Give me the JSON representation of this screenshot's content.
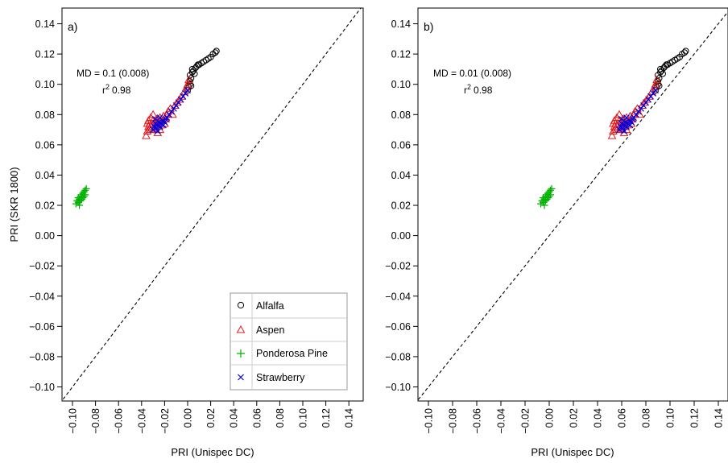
{
  "chart_data": [
    {
      "type": "scatter",
      "panel_label": "a)",
      "xlabel": "PRI (Unispec DC)",
      "ylabel": "PRI (SKR 1800)",
      "xlim": [
        -0.11,
        0.15
      ],
      "ylim": [
        -0.11,
        0.15
      ],
      "x_ticks": [
        "-0.10",
        "-0.08",
        "-0.06",
        "-0.04",
        "-0.02",
        "0.00",
        "0.02",
        "0.04",
        "0.06",
        "0.08",
        "0.10",
        "0.12",
        "0.14"
      ],
      "y_ticks": [
        "0.14",
        "0.12",
        "0.10",
        "0.08",
        "0.06",
        "0.04",
        "0.02",
        "0.00",
        "-0.02",
        "-0.04",
        "-0.06",
        "-0.08",
        "-0.10"
      ],
      "reference_line": "1:1 dashed",
      "stats": {
        "md": "MD = 0.1 (0.008)",
        "r2_label": "r",
        "r2_sup": "2",
        "r2_value": "0.98"
      },
      "legend": {
        "show": true,
        "placement": "bottom-right"
      },
      "series": [
        {
          "name": "Alfalfa",
          "marker": "circle",
          "color": "#000000",
          "x": [
            0.0,
            0.001,
            0.002,
            0.002,
            0.003,
            0.002,
            0.004,
            0.005,
            0.004,
            0.003,
            0.006,
            0.007,
            0.008,
            0.009,
            0.01,
            0.012,
            0.014,
            0.016,
            0.018,
            0.02,
            0.022,
            0.024,
            0.025
          ],
          "y": [
            0.096,
            0.098,
            0.1,
            0.102,
            0.104,
            0.106,
            0.108,
            0.109,
            0.11,
            0.099,
            0.107,
            0.111,
            0.112,
            0.113,
            0.113,
            0.114,
            0.115,
            0.116,
            0.117,
            0.118,
            0.12,
            0.121,
            0.122
          ]
        },
        {
          "name": "Aspen",
          "marker": "triangle",
          "color": "#e41a1c",
          "x": [
            -0.036,
            -0.035,
            -0.034,
            -0.033,
            -0.032,
            -0.031,
            -0.03,
            -0.029,
            -0.028,
            -0.027,
            -0.026,
            -0.025,
            -0.024,
            -0.023,
            -0.022,
            -0.021,
            -0.02,
            -0.019,
            -0.018,
            -0.017,
            -0.015,
            -0.013,
            -0.011,
            -0.009,
            -0.007,
            -0.005,
            -0.003,
            -0.001,
            0.0,
            0.001,
            -0.034,
            -0.032,
            -0.03,
            -0.028,
            -0.026,
            -0.024,
            -0.035,
            -0.033
          ],
          "y": [
            0.066,
            0.069,
            0.072,
            0.074,
            0.07,
            0.073,
            0.076,
            0.071,
            0.074,
            0.077,
            0.072,
            0.075,
            0.078,
            0.073,
            0.076,
            0.079,
            0.074,
            0.077,
            0.08,
            0.082,
            0.084,
            0.08,
            0.086,
            0.088,
            0.09,
            0.092,
            0.095,
            0.098,
            0.1,
            0.103,
            0.076,
            0.078,
            0.08,
            0.07,
            0.068,
            0.07,
            0.074,
            0.071
          ]
        },
        {
          "name": "Ponderosa Pine",
          "marker": "plus",
          "color": "#00b000",
          "x": [
            -0.097,
            -0.096,
            -0.095,
            -0.095,
            -0.094,
            -0.093,
            -0.093,
            -0.092,
            -0.091,
            -0.091,
            -0.09,
            -0.089,
            -0.089,
            -0.088,
            -0.094,
            -0.092,
            -0.09
          ],
          "y": [
            0.021,
            0.023,
            0.022,
            0.025,
            0.024,
            0.026,
            0.023,
            0.027,
            0.025,
            0.028,
            0.029,
            0.027,
            0.03,
            0.031,
            0.02,
            0.024,
            0.026
          ]
        },
        {
          "name": "Strawberry",
          "marker": "cross",
          "color": "#0000e0",
          "x": [
            -0.03,
            -0.029,
            -0.028,
            -0.027,
            -0.026,
            -0.025,
            -0.024,
            -0.023,
            -0.022,
            -0.021,
            -0.02,
            -0.019,
            -0.018,
            -0.016,
            -0.014,
            -0.012,
            -0.01,
            -0.008,
            -0.006,
            -0.004,
            -0.002,
            0.0,
            -0.028,
            -0.026,
            -0.024
          ],
          "y": [
            0.07,
            0.072,
            0.074,
            0.071,
            0.073,
            0.075,
            0.072,
            0.074,
            0.076,
            0.073,
            0.075,
            0.077,
            0.078,
            0.08,
            0.082,
            0.084,
            0.086,
            0.088,
            0.09,
            0.092,
            0.094,
            0.096,
            0.077,
            0.069,
            0.078
          ]
        }
      ]
    },
    {
      "type": "scatter",
      "panel_label": "b)",
      "xlabel": "PRI (Unispec DC)",
      "ylabel": "",
      "xlim": [
        -0.11,
        0.15
      ],
      "ylim": [
        -0.11,
        0.15
      ],
      "x_ticks": [
        "-0.10",
        "-0.08",
        "-0.06",
        "-0.04",
        "-0.02",
        "0.00",
        "0.02",
        "0.04",
        "0.06",
        "0.08",
        "0.10",
        "0.12",
        "0.14"
      ],
      "y_ticks": [
        "0.14",
        "0.12",
        "0.10",
        "0.08",
        "0.06",
        "0.04",
        "0.02",
        "0.00",
        "-0.02",
        "-0.04",
        "-0.06",
        "-0.08",
        "-0.10"
      ],
      "reference_line": "1:1 dashed",
      "stats": {
        "md": "MD = 0.01 (0.008)",
        "r2_label": "r",
        "r2_sup": "2",
        "r2_value": "0.98"
      },
      "legend": {
        "show": false
      },
      "series": [
        {
          "name": "Alfalfa",
          "marker": "circle",
          "color": "#000000",
          "x": [
            0.088,
            0.089,
            0.09,
            0.09,
            0.091,
            0.09,
            0.092,
            0.093,
            0.092,
            0.091,
            0.094,
            0.095,
            0.096,
            0.097,
            0.098,
            0.1,
            0.102,
            0.104,
            0.106,
            0.108,
            0.11,
            0.112,
            0.113
          ],
          "y": [
            0.096,
            0.098,
            0.1,
            0.102,
            0.104,
            0.106,
            0.108,
            0.109,
            0.11,
            0.099,
            0.107,
            0.111,
            0.112,
            0.113,
            0.113,
            0.114,
            0.115,
            0.116,
            0.117,
            0.118,
            0.12,
            0.121,
            0.122
          ]
        },
        {
          "name": "Aspen",
          "marker": "triangle",
          "color": "#e41a1c",
          "x": [
            0.052,
            0.053,
            0.054,
            0.055,
            0.056,
            0.057,
            0.058,
            0.059,
            0.06,
            0.061,
            0.062,
            0.063,
            0.064,
            0.065,
            0.066,
            0.067,
            0.068,
            0.069,
            0.07,
            0.071,
            0.073,
            0.075,
            0.077,
            0.079,
            0.081,
            0.083,
            0.085,
            0.087,
            0.088,
            0.089,
            0.054,
            0.056,
            0.058,
            0.06,
            0.062,
            0.064,
            0.053,
            0.055
          ],
          "y": [
            0.066,
            0.069,
            0.072,
            0.074,
            0.07,
            0.073,
            0.076,
            0.071,
            0.074,
            0.077,
            0.072,
            0.075,
            0.078,
            0.073,
            0.076,
            0.079,
            0.074,
            0.077,
            0.08,
            0.082,
            0.084,
            0.08,
            0.086,
            0.088,
            0.09,
            0.092,
            0.095,
            0.098,
            0.1,
            0.103,
            0.076,
            0.078,
            0.08,
            0.07,
            0.068,
            0.07,
            0.074,
            0.071
          ]
        },
        {
          "name": "Ponderosa Pine",
          "marker": "plus",
          "color": "#00b000",
          "x": [
            -0.007,
            -0.006,
            -0.005,
            -0.005,
            -0.004,
            -0.003,
            -0.003,
            -0.002,
            -0.001,
            -0.001,
            0.0,
            0.001,
            0.001,
            0.002,
            -0.004,
            -0.002,
            0.0
          ],
          "y": [
            0.021,
            0.023,
            0.022,
            0.025,
            0.024,
            0.026,
            0.023,
            0.027,
            0.025,
            0.028,
            0.029,
            0.027,
            0.03,
            0.031,
            0.02,
            0.024,
            0.026
          ]
        },
        {
          "name": "Strawberry",
          "marker": "cross",
          "color": "#0000e0",
          "x": [
            0.058,
            0.059,
            0.06,
            0.061,
            0.062,
            0.063,
            0.064,
            0.065,
            0.066,
            0.067,
            0.068,
            0.069,
            0.07,
            0.072,
            0.074,
            0.076,
            0.078,
            0.08,
            0.082,
            0.084,
            0.086,
            0.088,
            0.06,
            0.062,
            0.064
          ],
          "y": [
            0.07,
            0.072,
            0.074,
            0.071,
            0.073,
            0.075,
            0.072,
            0.074,
            0.076,
            0.073,
            0.075,
            0.077,
            0.078,
            0.08,
            0.082,
            0.084,
            0.086,
            0.088,
            0.09,
            0.092,
            0.094,
            0.096,
            0.077,
            0.069,
            0.078
          ]
        }
      ]
    }
  ]
}
